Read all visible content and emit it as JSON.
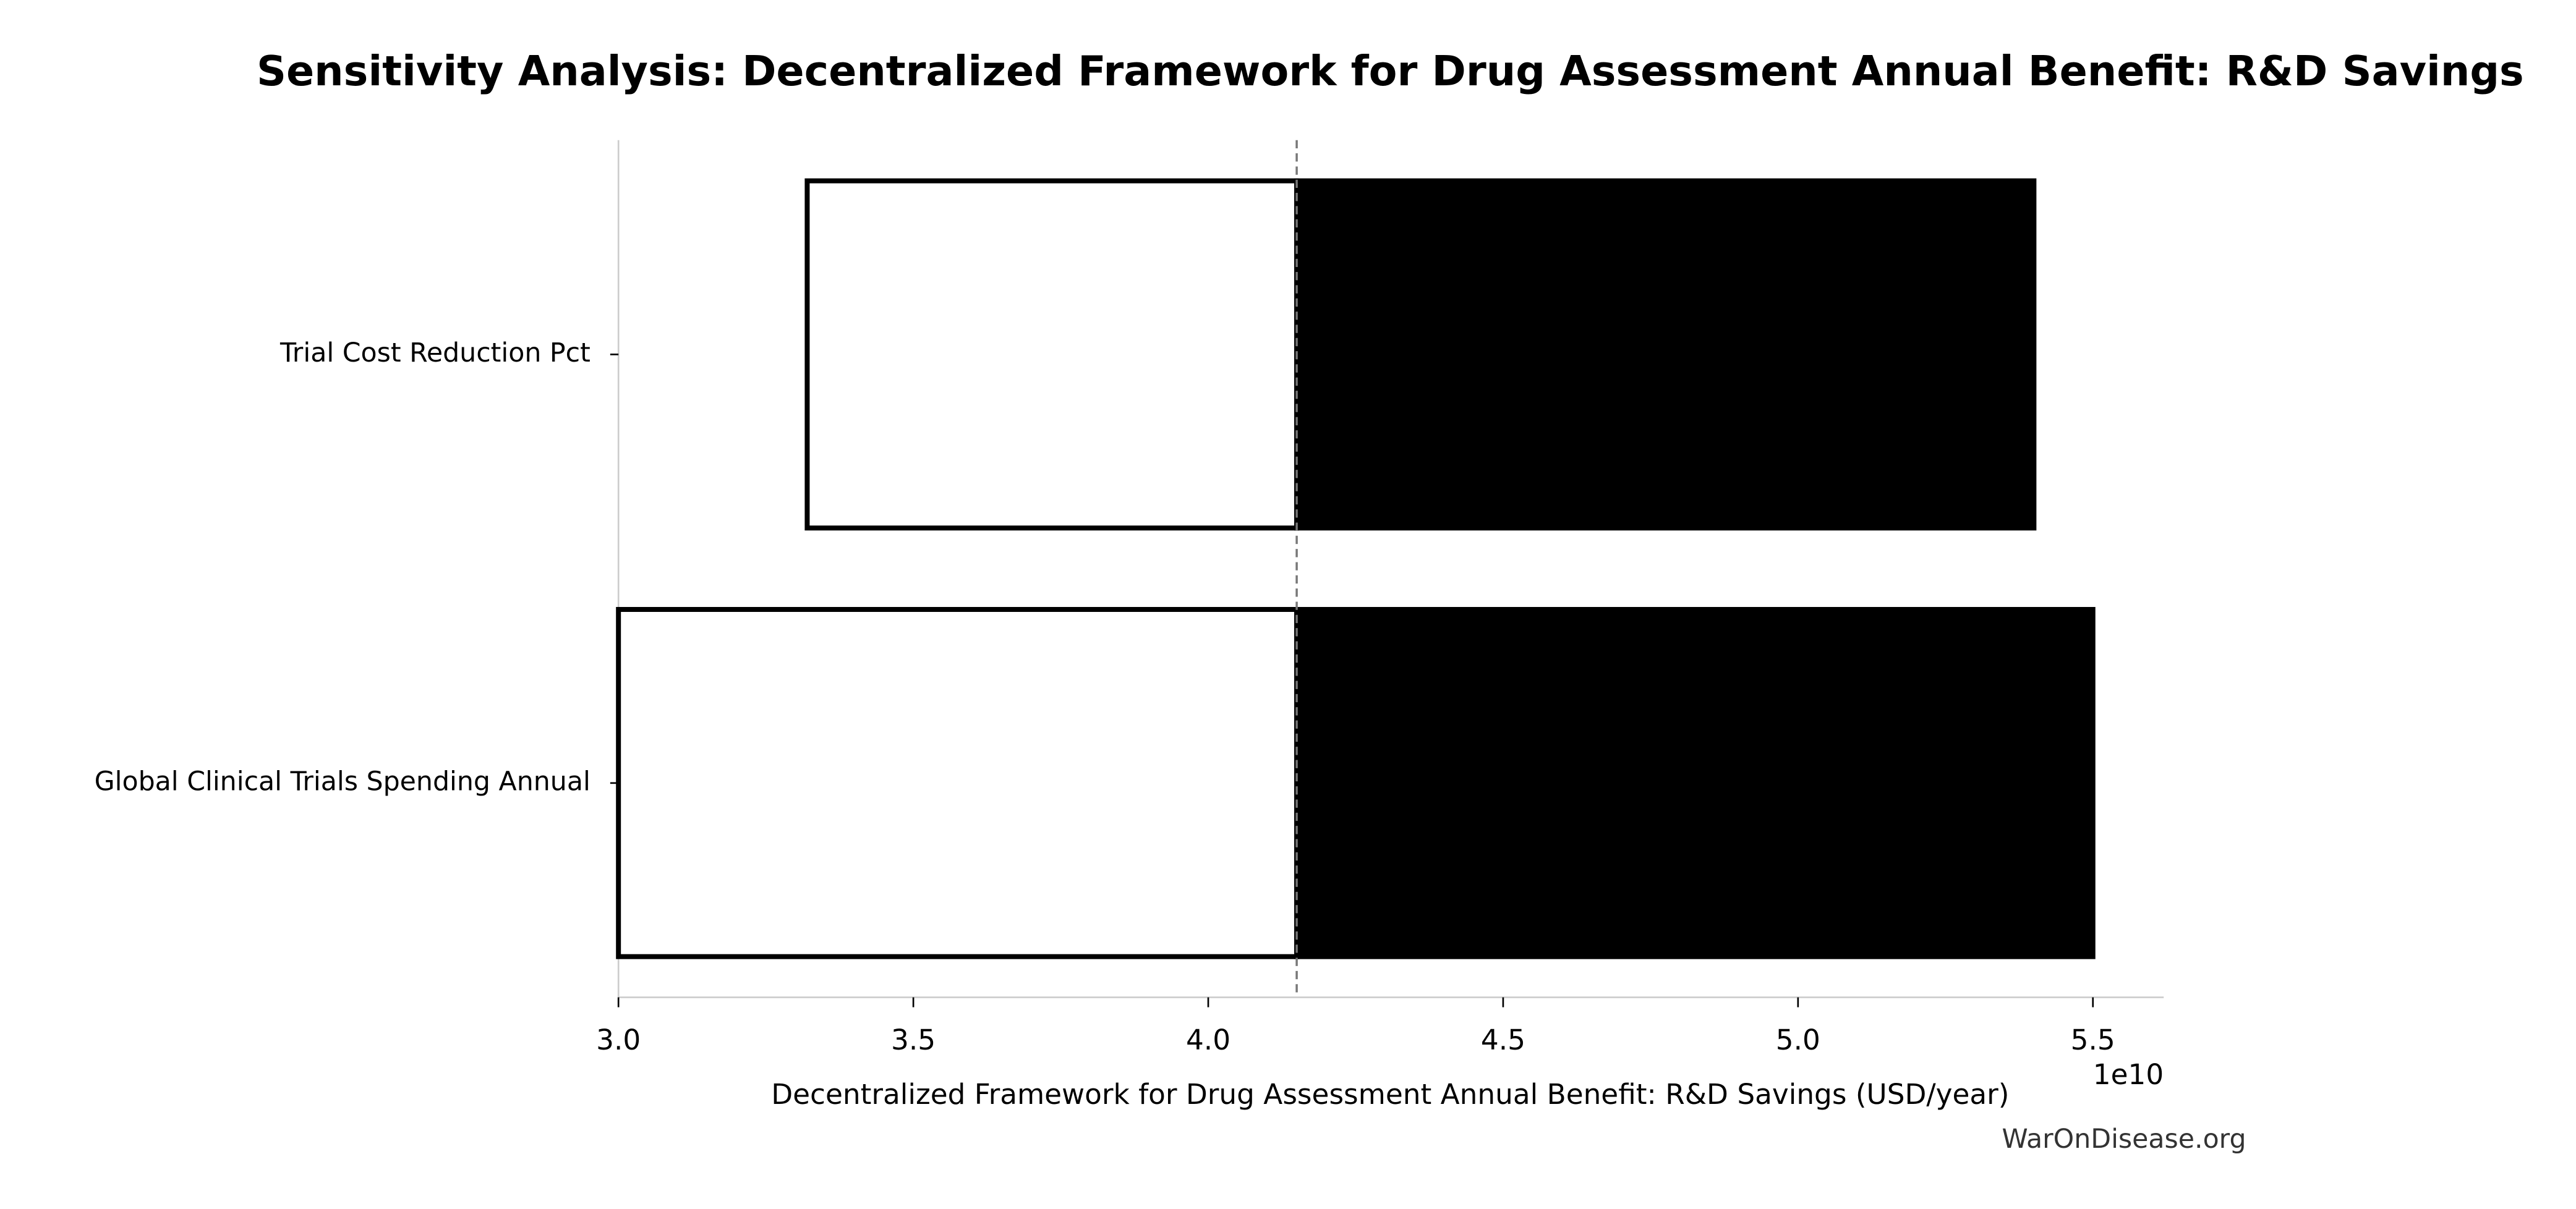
{
  "chart_data": {
    "type": "tornado",
    "title": "Sensitivity Analysis: Decentralized Framework for Drug Assessment Annual Benefit: R&D Savings",
    "x_label": "Decentralized Framework for Drug Assessment Annual Benefit: R&D Savings (USD/year)",
    "x_offset_label": "1e10",
    "watermark": "WarOnDisease.org",
    "categories": [
      "Trial Cost Reduction Pct",
      "Global Clinical Trials Spending Annual"
    ],
    "baseline": 41500000000,
    "series": [
      {
        "color": "#ffffff",
        "values": [
          33200000000,
          30000000000
        ]
      },
      {
        "color": "#000000",
        "values": [
          54000000000,
          55000000000
        ]
      }
    ],
    "xlim": [
      30000000000,
      56200000000
    ],
    "xticks": [
      {
        "value": 30000000000,
        "label": "3.0"
      },
      {
        "value": 35000000000,
        "label": "3.5"
      },
      {
        "value": 40000000000,
        "label": "4.0"
      },
      {
        "value": 45000000000,
        "label": "4.5"
      },
      {
        "value": 50000000000,
        "label": "5.0"
      },
      {
        "value": 55000000000,
        "label": "5.5"
      }
    ]
  }
}
